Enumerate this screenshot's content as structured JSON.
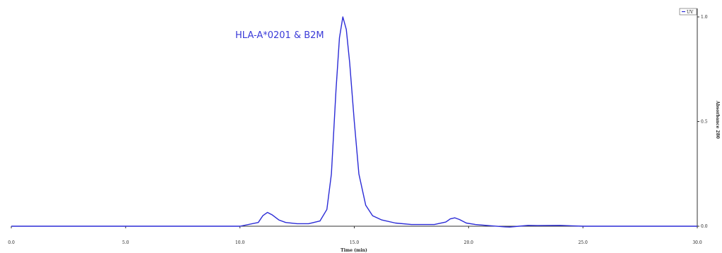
{
  "chart_data": {
    "type": "line",
    "xlabel": "Time (min)",
    "ylabel": "Absorbance 280",
    "xlim": [
      0,
      30
    ],
    "ylim": [
      -0.03,
      1.03
    ],
    "x_ticks": [
      0,
      5,
      10,
      15,
      20,
      25,
      30
    ],
    "x_tick_labels": [
      "0.0",
      "5.0",
      "10.0",
      "15.0",
      "20.0",
      "25.0",
      "30.0"
    ],
    "y_ticks": [
      0,
      0.5,
      1.0
    ],
    "y_tick_labels": [
      "0.0",
      "0.5",
      "1.0"
    ],
    "y_axis_side": "right",
    "grid": false,
    "legend": {
      "position": "top-right",
      "entries": [
        "UV"
      ]
    },
    "annotation": "HLA-A*0201 & B2M",
    "colors": {
      "line": "#2b2bd6",
      "annotation": "#3a3ad8",
      "axis": "#333333"
    },
    "series": [
      {
        "name": "UV",
        "x": [
          0,
          5,
          10,
          10.8,
          11.0,
          11.2,
          11.4,
          11.7,
          12.0,
          12.5,
          13.0,
          13.5,
          13.8,
          14.0,
          14.2,
          14.35,
          14.5,
          14.65,
          14.8,
          15.0,
          15.2,
          15.5,
          15.8,
          16.2,
          16.8,
          17.5,
          18.5,
          19.0,
          19.2,
          19.4,
          19.6,
          19.9,
          20.3,
          21.0,
          21.6,
          21.8,
          22.2,
          22.6,
          23.0,
          24.0,
          24.5,
          25.0,
          30.0
        ],
        "y": [
          0,
          0,
          0,
          0.018,
          0.05,
          0.066,
          0.055,
          0.03,
          0.018,
          0.012,
          0.012,
          0.025,
          0.08,
          0.25,
          0.65,
          0.9,
          1.0,
          0.94,
          0.78,
          0.5,
          0.25,
          0.1,
          0.05,
          0.03,
          0.015,
          0.008,
          0.008,
          0.02,
          0.035,
          0.04,
          0.032,
          0.015,
          0.008,
          0.002,
          -0.003,
          -0.004,
          0.0,
          0.004,
          0.003,
          0.004,
          0.002,
          0.0,
          0.0
        ]
      }
    ]
  }
}
